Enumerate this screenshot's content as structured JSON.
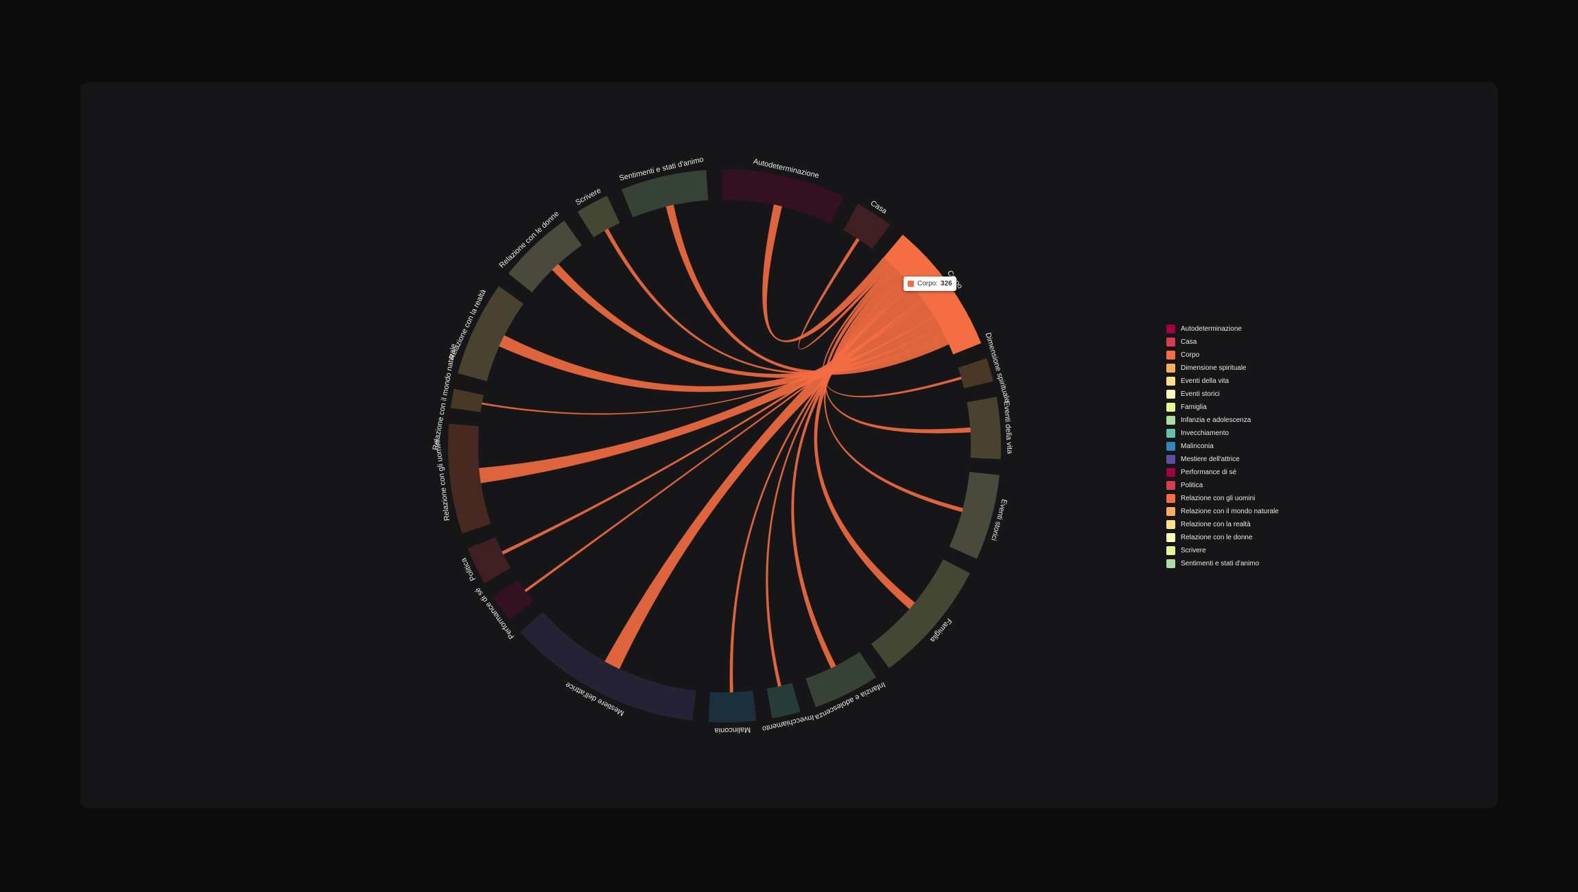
{
  "chart_data": {
    "type": "chord",
    "groups": [
      {
        "name": "Autodeterminazione",
        "value": 303,
        "color": "#9e0142"
      },
      {
        "name": "Casa",
        "value": 93,
        "color": "#d53e4f"
      },
      {
        "name": "Corpo",
        "value": 326,
        "color": "#f46d43"
      },
      {
        "name": "Dimensione spirituale",
        "value": 58,
        "color": "#fdae61"
      },
      {
        "name": "Eventi della vita",
        "value": 151,
        "color": "#fee08b"
      },
      {
        "name": "Eventi storici",
        "value": 210,
        "color": "#ffffbf"
      },
      {
        "name": "Famiglia",
        "value": 303,
        "color": "#e6f598"
      },
      {
        "name": "Infanzia e adolescenza",
        "value": 163,
        "color": "#abdda4"
      },
      {
        "name": "Invecchiamento",
        "value": 70,
        "color": "#66c2a5"
      },
      {
        "name": "Malinconia",
        "value": 116,
        "color": "#3288bd"
      },
      {
        "name": "Mestiere dell'attrice",
        "value": 477,
        "color": "#5e4fa2"
      },
      {
        "name": "Performance di sé",
        "value": 70,
        "color": "#9e0142"
      },
      {
        "name": "Politica",
        "value": 93,
        "color": "#d53e4f"
      },
      {
        "name": "Relazione con gli uomini",
        "value": 268,
        "color": "#f46d43"
      },
      {
        "name": "Relazione con il mondo naturale",
        "value": 47,
        "color": "#fdae61"
      },
      {
        "name": "Relazione con la realtà",
        "value": 233,
        "color": "#fee08b"
      },
      {
        "name": "Relazione con le donne",
        "value": 186,
        "color": "#ffffbf"
      },
      {
        "name": "Scrivere",
        "value": 81,
        "color": "#e6f598"
      },
      {
        "name": "Sentimenti e stati d'animo",
        "value": 210,
        "color": "#abdda4"
      }
    ],
    "links": [
      {
        "source": "Corpo",
        "target": "Autodeterminazione",
        "value": 22
      },
      {
        "source": "Corpo",
        "target": "Casa",
        "value": 8
      },
      {
        "source": "Corpo",
        "target": "Dimensione spirituale",
        "value": 6
      },
      {
        "source": "Corpo",
        "target": "Eventi della vita",
        "value": 12
      },
      {
        "source": "Corpo",
        "target": "Eventi storici",
        "value": 10
      },
      {
        "source": "Corpo",
        "target": "Famiglia",
        "value": 22
      },
      {
        "source": "Corpo",
        "target": "Infanzia e adolescenza",
        "value": 14
      },
      {
        "source": "Corpo",
        "target": "Invecchiamento",
        "value": 8
      },
      {
        "source": "Corpo",
        "target": "Malinconia",
        "value": 8
      },
      {
        "source": "Corpo",
        "target": "Mestiere dell'attrice",
        "value": 44
      },
      {
        "source": "Corpo",
        "target": "Performance di sé",
        "value": 6
      },
      {
        "source": "Corpo",
        "target": "Politica",
        "value": 8
      },
      {
        "source": "Corpo",
        "target": "Relazione con gli uomini",
        "value": 40
      },
      {
        "source": "Corpo",
        "target": "Relazione con il mondo naturale",
        "value": 4
      },
      {
        "source": "Corpo",
        "target": "Relazione con la realtà",
        "value": 32
      },
      {
        "source": "Corpo",
        "target": "Relazione con le donne",
        "value": 22
      },
      {
        "source": "Corpo",
        "target": "Scrivere",
        "value": 10
      },
      {
        "source": "Corpo",
        "target": "Sentimenti e stati d'animo",
        "value": 20
      }
    ],
    "tooltip": {
      "label": "Corpo:",
      "value": 326,
      "color": "#f46d43"
    }
  }
}
